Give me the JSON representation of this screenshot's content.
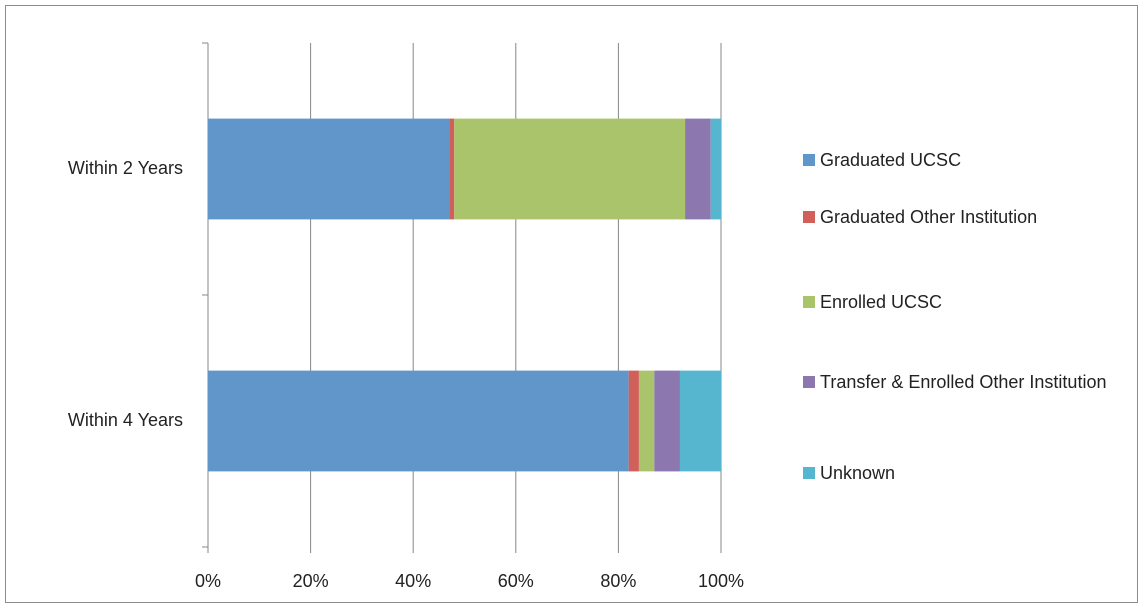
{
  "chart_data": {
    "type": "stacked-bar-horizontal",
    "categories": [
      "Within 2 Years",
      "Within 4 Years"
    ],
    "series": [
      {
        "name": "Graduated UCSC",
        "color": "#6196cb",
        "values": [
          47,
          82
        ]
      },
      {
        "name": "Graduated Other Institution",
        "color": "#d2605a",
        "values": [
          1,
          2
        ]
      },
      {
        "name": "Enrolled UCSC",
        "color": "#a9c46b",
        "values": [
          45,
          3
        ]
      },
      {
        "name": "Transfer & Enrolled Other Institution",
        "color": "#8c78ae",
        "values": [
          5,
          5
        ]
      },
      {
        "name": "Unknown",
        "color": "#57b6cf",
        "values": [
          2,
          8
        ]
      }
    ],
    "xlim": [
      0,
      100
    ],
    "xticks": [
      {
        "value": 0,
        "label": "0%"
      },
      {
        "value": 20,
        "label": "20%"
      },
      {
        "value": 40,
        "label": "40%"
      },
      {
        "value": 60,
        "label": "60%"
      },
      {
        "value": 80,
        "label": "80%"
      },
      {
        "value": 100,
        "label": "100%"
      }
    ],
    "grid": true,
    "legend": "right"
  }
}
